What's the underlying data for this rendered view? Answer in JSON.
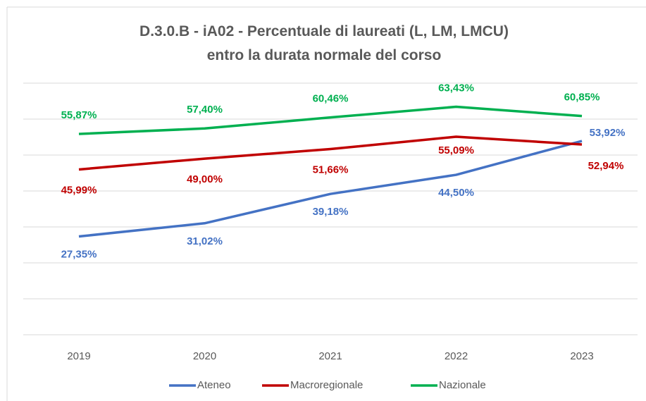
{
  "chart_data": {
    "type": "line",
    "title": "D.3.0.B - iA02 - Percentuale di laureati (L, LM, LMCU) entro la durata normale del corso",
    "categories": [
      "2019",
      "2020",
      "2021",
      "2022",
      "2023"
    ],
    "series": [
      {
        "name": "Ateneo",
        "color": "#4472c4",
        "values": [
          27.35,
          31.02,
          39.18,
          44.5,
          53.92
        ],
        "value_labels": [
          "27,35%",
          "31,02%",
          "39,18%",
          "44,50%",
          "53,92%"
        ]
      },
      {
        "name": "Macroregionale",
        "color": "#c00000",
        "values": [
          45.99,
          49.0,
          51.66,
          55.09,
          52.94
        ],
        "value_labels": [
          "45,99%",
          "49,00%",
          "51,66%",
          "55,09%",
          "52,94%"
        ]
      },
      {
        "name": "Nazionale",
        "color": "#00b050",
        "values": [
          55.87,
          57.4,
          60.46,
          63.43,
          60.85
        ],
        "value_labels": [
          "55,87%",
          "57,40%",
          "60,46%",
          "63,43%",
          "60,85%"
        ]
      }
    ],
    "ylim": [
      0,
      70
    ],
    "yticks": [
      0,
      10,
      20,
      30,
      40,
      50,
      60,
      70
    ],
    "grid": true,
    "legend": "bottom"
  }
}
